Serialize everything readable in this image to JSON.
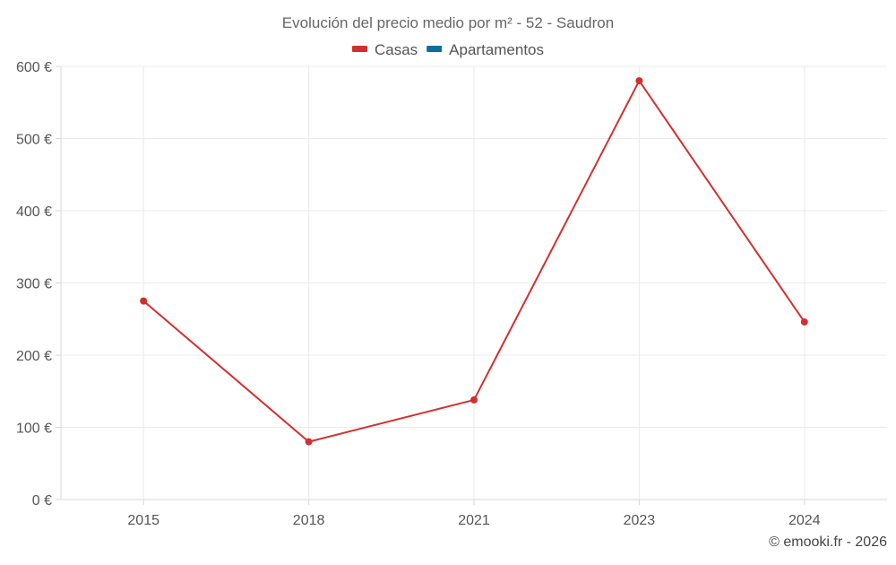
{
  "chart_data": {
    "type": "line",
    "title": "Evolución del precio medio por m² - 52 - Saudron",
    "categories": [
      "2015",
      "2018",
      "2021",
      "2023",
      "2024"
    ],
    "series": [
      {
        "name": "Casas",
        "color": "#d32f2f",
        "values": [
          275,
          80,
          138,
          580,
          246
        ]
      },
      {
        "name": "Apartamentos",
        "color": "#0b6e9e",
        "values": [
          null,
          null,
          null,
          null,
          null
        ]
      }
    ],
    "ylim": [
      0,
      600
    ],
    "yticks": [
      0,
      100,
      200,
      300,
      400,
      500,
      600
    ],
    "ytick_labels": [
      "0 €",
      "100 €",
      "200 €",
      "300 €",
      "400 €",
      "500 €",
      "600 €"
    ],
    "xlabel": "",
    "ylabel": "",
    "grid": true,
    "legend_position": "top-center"
  },
  "footer": {
    "copyright": "© emooki.fr - 2026"
  }
}
